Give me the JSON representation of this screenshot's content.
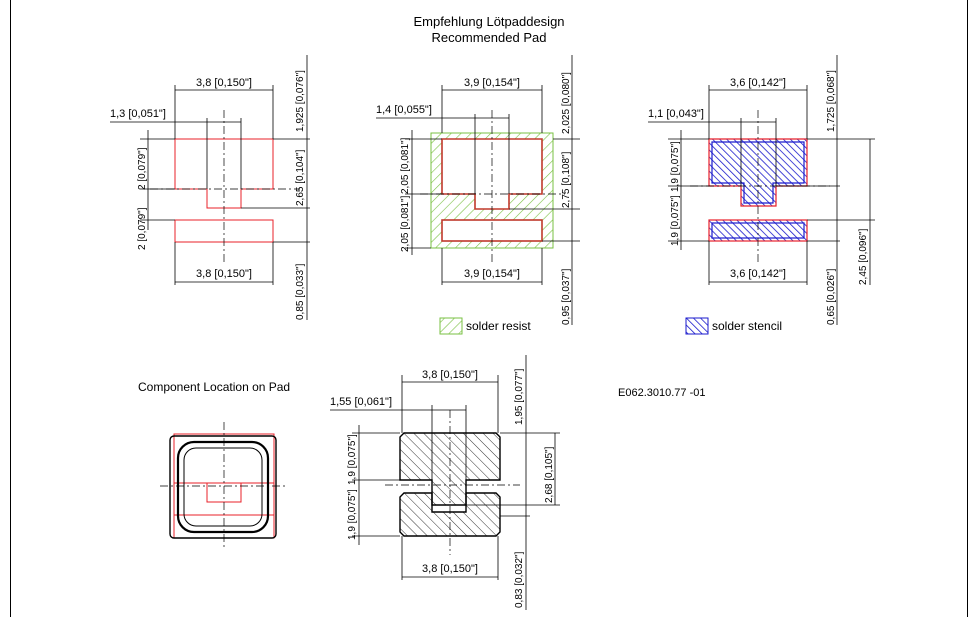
{
  "header": {
    "title_de": "Empfehlung Lötpaddesign",
    "title_en": "Recommended Pad"
  },
  "left_pad": {
    "top_width": "3,8 [0,150\"]",
    "notch_width": "1,3 [0,051\"]",
    "top_pad_height": "2 [0,079\"]",
    "gap_height": "2 [0,079\"]",
    "right_top": "1,925 [0,076\"]",
    "right_mid": "2,65 [0,104\"]",
    "bottom_width": "3,8 [0,150\"]",
    "bottom_right": "0,85 [0,033\"]"
  },
  "middle_pad": {
    "top_width": "3,9 [0,154\"]",
    "notch_width": "1,4 [0,055\"]",
    "left_top": "2,05 [0,081\"]",
    "left_bottom": "2,05 [0,081\"]",
    "right_top": "2,025 [0,080\"]",
    "right_mid": "2,75 [0,108\"]",
    "bottom_width": "3,9 [0,154\"]",
    "bottom_right": "0,95 [0,037\"]"
  },
  "right_pad": {
    "top_width": "3,6 [0,142\"]",
    "notch_width": "1,1 [0,043\"]",
    "left_top": "1,9 [0,075\"]",
    "left_bottom": "1,9 [0,075\"]",
    "right_top": "1,725 [0,068\"]",
    "right_mid": "2,45 [0,096\"]",
    "bottom_width": "3,6 [0,142\"]",
    "bottom_right": "0,65 [0,026\"]"
  },
  "legend": {
    "solder_resist": "solder resist",
    "solder_stencil": "solder stencil",
    "resist_color": "#7ac143",
    "stencil_color": "#1a1acc",
    "pad_outline_color": "#e8202a"
  },
  "component_location": {
    "label": "Component Location on Pad"
  },
  "doc_id": "E062.3010.77 -01",
  "bottom_pad": {
    "top_width": "3,8 [0,150\"]",
    "notch_width": "1,55 [0,061\"]",
    "left_top": "1,9 [0,075\"]",
    "left_bottom": "1,9 [0,075\"]",
    "right_top": "1,95 [0,077\"]",
    "right_mid": "2,68 [0,105\"]",
    "bottom_width": "3,8 [0,150\"]",
    "bottom_right": "0,83 [0,032\"]"
  }
}
